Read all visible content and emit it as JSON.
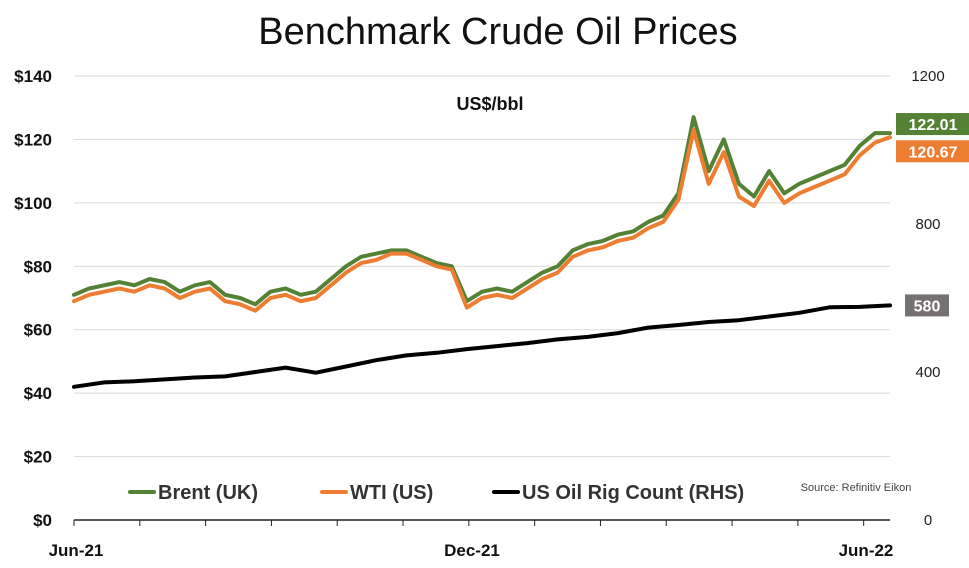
{
  "chart_data": {
    "type": "line",
    "title": "Benchmark Crude Oil Prices",
    "unit_label": "US$/bbl",
    "source": "Source: Refinitiv Eikon",
    "x_tick_labels": [
      "Jun-21",
      "Dec-21",
      "Jun-22"
    ],
    "x_range": [
      0,
      54
    ],
    "y_left": {
      "min": 0,
      "max": 140,
      "ticks": [
        "$0",
        "$20",
        "$40",
        "$60",
        "$80",
        "$100",
        "$120",
        "$140"
      ]
    },
    "y_right": {
      "min": 0,
      "max": 1200,
      "ticks": [
        "0",
        "400",
        "800",
        "1200"
      ]
    },
    "grid": true,
    "legend_placement": "bottom",
    "series": [
      {
        "name": "Brent (UK)",
        "color": "#538135",
        "axis": "left",
        "x": [
          0,
          1,
          2,
          3,
          4,
          5,
          6,
          7,
          8,
          9,
          10,
          11,
          12,
          13,
          14,
          15,
          16,
          17,
          18,
          19,
          20,
          21,
          22,
          23,
          24,
          25,
          26,
          27,
          28,
          29,
          30,
          31,
          32,
          33,
          34,
          35,
          36,
          37,
          38,
          39,
          40,
          41,
          42,
          43,
          44,
          45,
          46,
          47,
          48,
          49,
          50,
          51,
          52,
          53,
          54
        ],
        "values": [
          71,
          73,
          74,
          75,
          74,
          76,
          75,
          72,
          74,
          75,
          71,
          70,
          68,
          72,
          73,
          71,
          72,
          76,
          80,
          83,
          84,
          85,
          85,
          83,
          81,
          80,
          69,
          72,
          73,
          72,
          75,
          78,
          80,
          85,
          87,
          88,
          90,
          91,
          94,
          96,
          103,
          127,
          110,
          120,
          106,
          102,
          110,
          103,
          106,
          108,
          110,
          112,
          118,
          122,
          122.01
        ]
      },
      {
        "name": "WTI (US)",
        "color": "#ed7d31",
        "axis": "left",
        "x": [
          0,
          1,
          2,
          3,
          4,
          5,
          6,
          7,
          8,
          9,
          10,
          11,
          12,
          13,
          14,
          15,
          16,
          17,
          18,
          19,
          20,
          21,
          22,
          23,
          24,
          25,
          26,
          27,
          28,
          29,
          30,
          31,
          32,
          33,
          34,
          35,
          36,
          37,
          38,
          39,
          40,
          41,
          42,
          43,
          44,
          45,
          46,
          47,
          48,
          49,
          50,
          51,
          52,
          53,
          54
        ],
        "values": [
          69,
          71,
          72,
          73,
          72,
          74,
          73,
          70,
          72,
          73,
          69,
          68,
          66,
          70,
          71,
          69,
          70,
          74,
          78,
          81,
          82,
          84,
          84,
          82,
          80,
          79,
          67,
          70,
          71,
          70,
          73,
          76,
          78,
          83,
          85,
          86,
          88,
          89,
          92,
          94,
          101,
          123,
          106,
          116,
          102,
          99,
          107,
          100,
          103,
          105,
          107,
          109,
          115,
          119,
          120.67
        ]
      },
      {
        "name": "US Oil Rig Count (RHS)",
        "color": "#000000",
        "axis": "right",
        "x": [
          0,
          2,
          4,
          6,
          8,
          10,
          12,
          14,
          16,
          18,
          20,
          22,
          24,
          26,
          28,
          30,
          32,
          34,
          36,
          38,
          40,
          42,
          44,
          46,
          48,
          50,
          52,
          54
        ],
        "values": [
          360,
          372,
          375,
          380,
          385,
          388,
          400,
          412,
          398,
          415,
          432,
          445,
          452,
          462,
          470,
          478,
          488,
          495,
          505,
          520,
          527,
          535,
          540,
          550,
          560,
          575,
          576,
          580
        ]
      }
    ],
    "end_labels": [
      {
        "text": "122.01",
        "series": "Brent (UK)",
        "color": "#548235"
      },
      {
        "text": "120.67",
        "series": "WTI (US)",
        "color": "#ed7d31"
      },
      {
        "text": "580",
        "series": "US Oil Rig Count (RHS)",
        "color": "#767171"
      }
    ]
  }
}
